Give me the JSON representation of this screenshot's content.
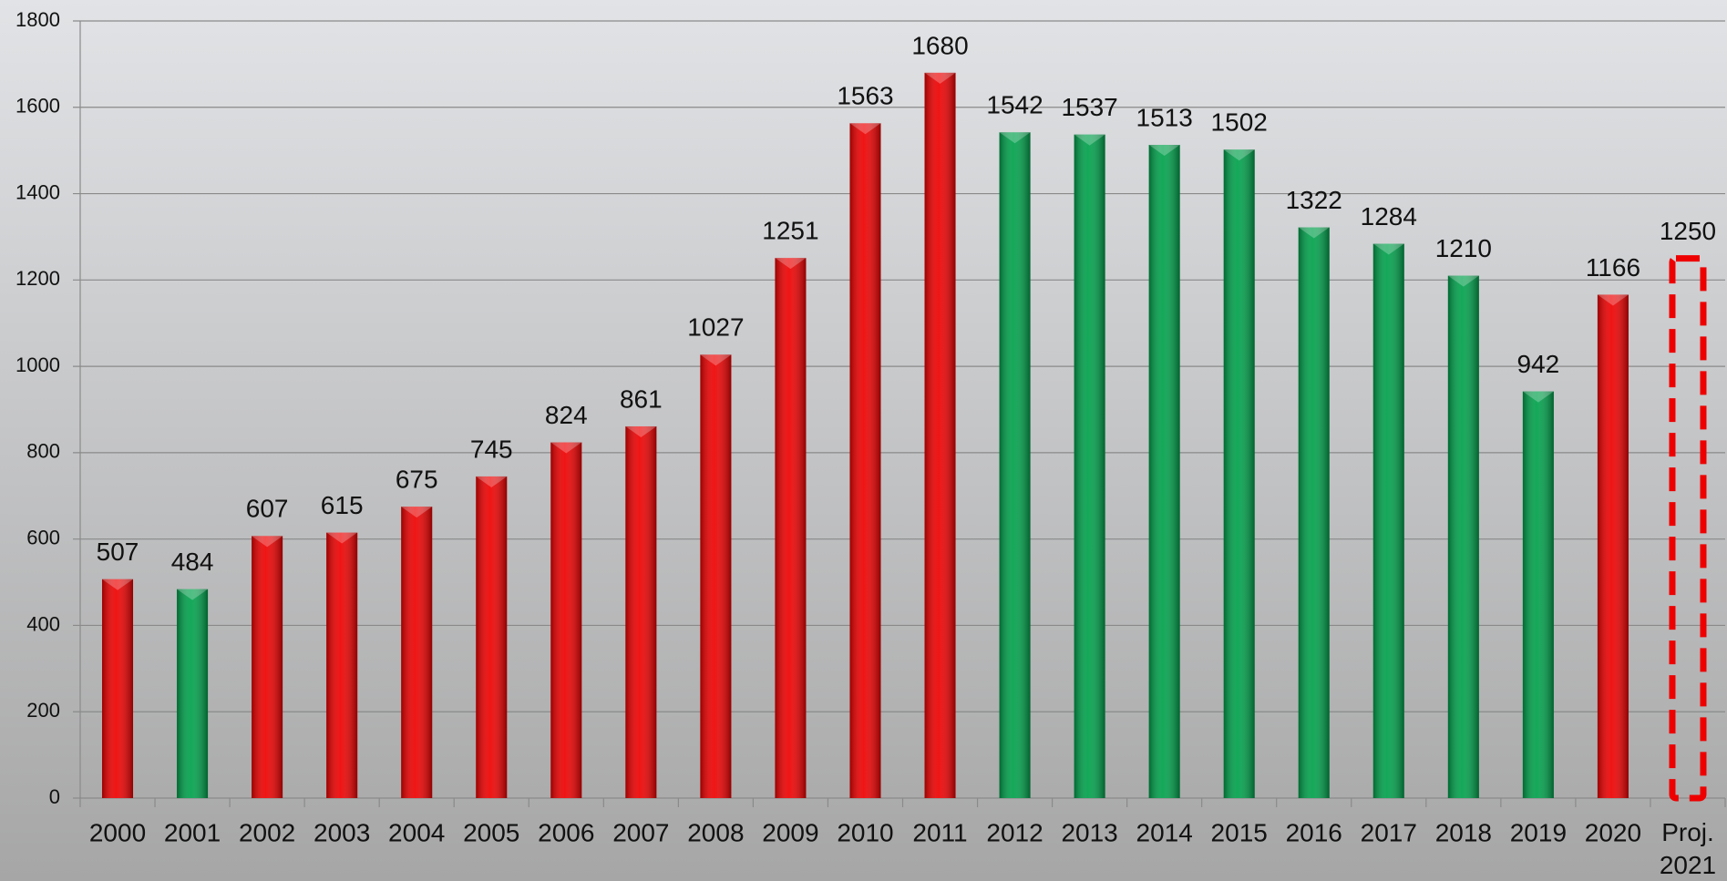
{
  "chart_data": {
    "type": "bar",
    "categories": [
      "2000",
      "2001",
      "2002",
      "2003",
      "2004",
      "2005",
      "2006",
      "2007",
      "2008",
      "2009",
      "2010",
      "2011",
      "2012",
      "2013",
      "2014",
      "2015",
      "2016",
      "2017",
      "2018",
      "2019",
      "2020",
      "Proj.\n2021"
    ],
    "values": [
      507,
      484,
      607,
      615,
      675,
      745,
      824,
      861,
      1027,
      1251,
      1563,
      1680,
      1542,
      1537,
      1513,
      1502,
      1322,
      1284,
      1210,
      942,
      1166,
      1250
    ],
    "colors": [
      "#ee0000",
      "#00a14b",
      "#ee0000",
      "#ee0000",
      "#ee0000",
      "#ee0000",
      "#ee0000",
      "#ee0000",
      "#ee0000",
      "#ee0000",
      "#ee0000",
      "#ee0000",
      "#00a14b",
      "#00a14b",
      "#00a14b",
      "#00a14b",
      "#00a14b",
      "#00a14b",
      "#00a14b",
      "#00a14b",
      "#ee0000",
      "#ee0000"
    ],
    "styles": [
      "solid",
      "solid",
      "solid",
      "solid",
      "solid",
      "solid",
      "solid",
      "solid",
      "solid",
      "solid",
      "solid",
      "solid",
      "solid",
      "solid",
      "solid",
      "solid",
      "solid",
      "solid",
      "solid",
      "solid",
      "solid",
      "dashed"
    ],
    "ylim": [
      0,
      1800
    ],
    "yticks": [
      0,
      200,
      400,
      600,
      800,
      1000,
      1200,
      1400,
      1600,
      1800
    ],
    "grid": true
  }
}
